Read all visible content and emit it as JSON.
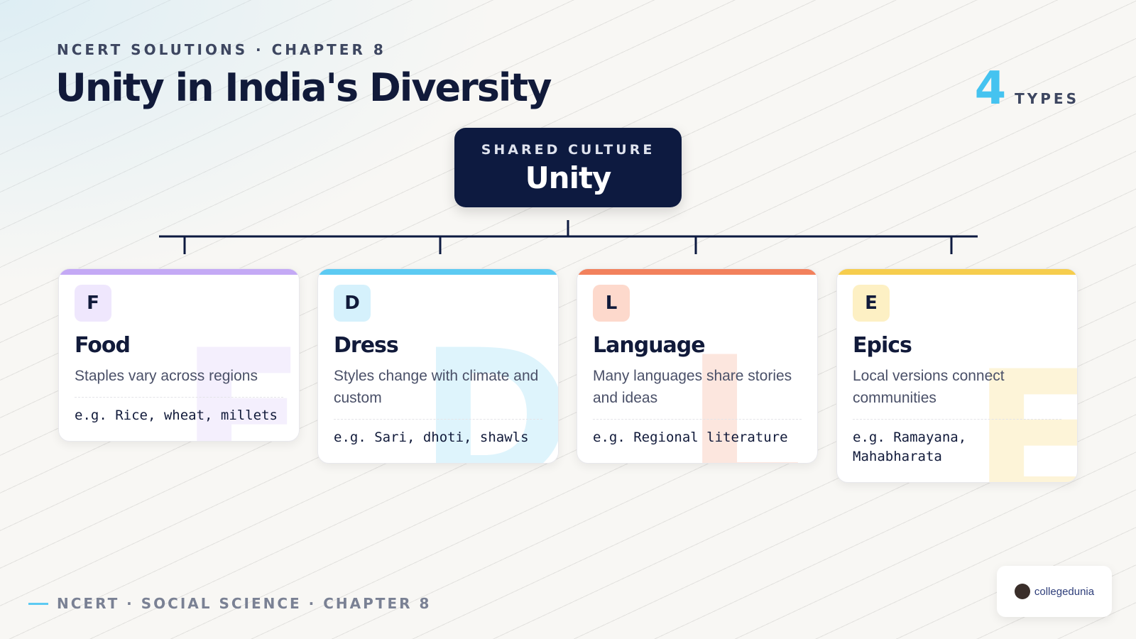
{
  "header": {
    "kicker": "NCERT SOLUTIONS · CHAPTER 8",
    "title": "Unity in India's Diversity"
  },
  "counter": {
    "number": "4",
    "label": "TYPES"
  },
  "root": {
    "kicker": "SHARED CULTURE",
    "label": "Unity"
  },
  "cards": [
    {
      "letter": "F",
      "title": "Food",
      "text": "Staples vary across regions",
      "example": "e.g. Rice, wheat, millets"
    },
    {
      "letter": "D",
      "title": "Dress",
      "text": "Styles change with climate and custom",
      "example": "e.g. Sari, dhoti, shawls"
    },
    {
      "letter": "L",
      "title": "Language",
      "text": "Many languages share stories and ideas",
      "example": "e.g. Regional literature"
    },
    {
      "letter": "E",
      "title": "Epics",
      "text": "Local versions connect communities",
      "example": "e.g. Ramayana, Mahabharata"
    }
  ],
  "footer": {
    "text": "NCERT · SOCIAL SCIENCE · CHAPTER 8",
    "logo": "collegedunia"
  }
}
